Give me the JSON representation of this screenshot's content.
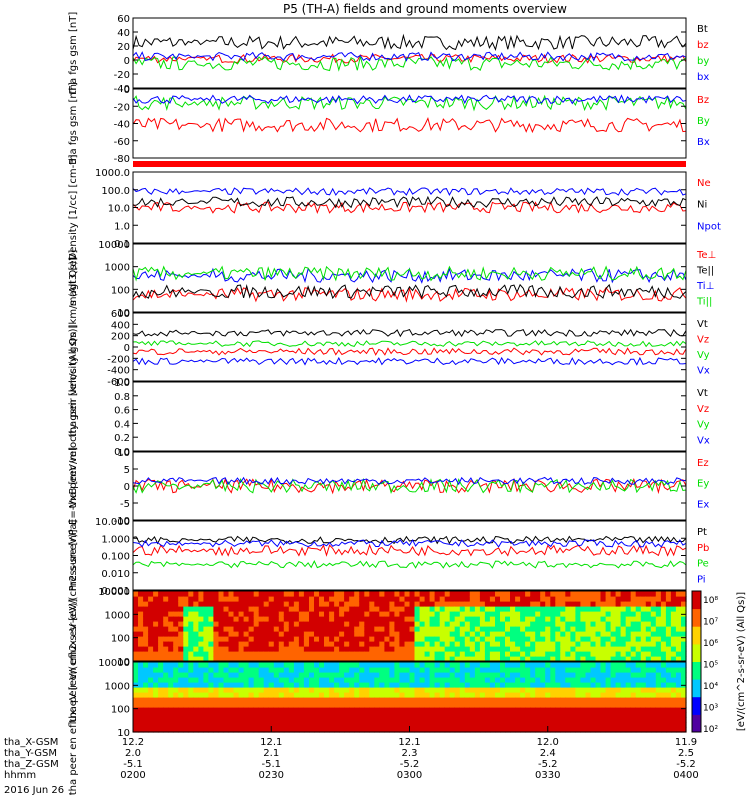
{
  "title": "P5 (TH-A) fields and ground moments overview",
  "date_label": "2016 Jun 26",
  "colors": {
    "black": "#000000",
    "red": "#ff0000",
    "green": "#00e000",
    "blue": "#0000ff",
    "colorbar": [
      "#5000a0",
      "#0000ff",
      "#00c8ff",
      "#00ff80",
      "#c8ff00",
      "#ffd200",
      "#ff6400",
      "#d20000"
    ]
  },
  "chart_data": [
    {
      "type": "line",
      "ylabel": "tha fgs gsm [nT]",
      "ylim": [
        -40,
        60
      ],
      "ticks": [
        "60",
        "40",
        "20",
        "0",
        "-20",
        "-40"
      ],
      "series": [
        {
          "name": "Bt",
          "color": "black",
          "base": 25,
          "amp": 10
        },
        {
          "name": "bz",
          "color": "red",
          "base": 2,
          "amp": 6
        },
        {
          "name": "by",
          "color": "green",
          "base": -5,
          "amp": 10
        },
        {
          "name": "bx",
          "color": "blue",
          "base": 5,
          "amp": 6
        }
      ]
    },
    {
      "type": "line",
      "ylabel": "tha fgs gsm [nT]",
      "ylim": [
        -90,
        10
      ],
      "ticks": [
        "0",
        "-20",
        "-40",
        "-60",
        "-80"
      ],
      "series": [
        {
          "name": "Bz",
          "color": "red",
          "base": -42,
          "amp": 10
        },
        {
          "name": "By",
          "color": "green",
          "base": -10,
          "amp": 10
        },
        {
          "name": "Bx",
          "color": "blue",
          "base": -5,
          "amp": 6
        }
      ]
    },
    {
      "type": "line",
      "ylabel": "Density [1/cc] [cm-3]",
      "log": true,
      "ylim": [
        0.1,
        1000
      ],
      "ticks": [
        "1000.0",
        "100.0",
        "10.0",
        "1.0",
        "0.1"
      ],
      "series": [
        {
          "name": "Ne",
          "color": "red",
          "base": 10,
          "amp": 0.3
        },
        {
          "name": "Ni",
          "color": "black",
          "base": 20,
          "amp": 0.3
        },
        {
          "name": "Npot",
          "color": "blue",
          "base": 80,
          "amp": 0.2
        }
      ]
    },
    {
      "type": "line",
      "ylabel": "magt3 [eV]",
      "log": true,
      "ylim": [
        10,
        10000
      ],
      "ticks": [
        "10000",
        "1000",
        "100",
        "10"
      ],
      "series": [
        {
          "name": "Te⊥",
          "color": "red",
          "base": 60,
          "amp": 0.3
        },
        {
          "name": "Te||",
          "color": "black",
          "base": 80,
          "amp": 0.3
        },
        {
          "name": "Ti⊥",
          "color": "blue",
          "base": 400,
          "amp": 0.3
        },
        {
          "name": "Ti||",
          "color": "green",
          "base": 500,
          "amp": 0.3
        }
      ]
    },
    {
      "type": "line",
      "ylabel": "tha peir velocity gsm [km/s (All Qs)]",
      "ylim": [
        -600,
        600
      ],
      "ticks": [
        "600",
        "400",
        "200",
        "0",
        "-200",
        "-400",
        "-600"
      ],
      "series": [
        {
          "name": "Vt",
          "color": "black",
          "base": 250,
          "amp": 60
        },
        {
          "name": "Vz",
          "color": "red",
          "base": -80,
          "amp": 60
        },
        {
          "name": "Vy",
          "color": "green",
          "base": 60,
          "amp": 50
        },
        {
          "name": "Vx",
          "color": "blue",
          "base": -250,
          "amp": 60
        }
      ]
    },
    {
      "type": "line",
      "ylabel": "tha peer velocity gsm [km/s (All Qs)]",
      "ylim": [
        0,
        1
      ],
      "ticks": [
        "1.0",
        "0.8",
        "0.6",
        "0.4",
        "0.2",
        "0.0"
      ],
      "series": [
        {
          "name": "Vt",
          "color": "black"
        },
        {
          "name": "Vz",
          "color": "red"
        },
        {
          "name": "Vy",
          "color": "green"
        },
        {
          "name": "Vx",
          "color": "blue"
        }
      ]
    },
    {
      "type": "line",
      "ylabel": "E=-VxB [mV/m]",
      "ylim": [
        -10,
        10
      ],
      "ticks": [
        "10",
        "5",
        "0",
        "-5",
        "-10"
      ],
      "series": [
        {
          "name": "Ez",
          "color": "red",
          "base": 0,
          "amp": 2
        },
        {
          "name": "Ey",
          "color": "green",
          "base": 0,
          "amp": 2
        },
        {
          "name": "Ex",
          "color": "blue",
          "base": 1.5,
          "amp": 1
        }
      ]
    },
    {
      "type": "line",
      "ylabel": "Pressure [nPa]",
      "log": true,
      "ylim": [
        0.001,
        10
      ],
      "ticks": [
        "10.000",
        "1.000",
        "0.100",
        "0.010",
        "0.001"
      ],
      "series": [
        {
          "name": "Pt",
          "color": "black",
          "base": 0.8,
          "amp": 0.2
        },
        {
          "name": "Pb",
          "color": "red",
          "base": 0.2,
          "amp": 0.3
        },
        {
          "name": "Pe",
          "color": "green",
          "base": 0.03,
          "amp": 0.2
        },
        {
          "name": "Pi",
          "color": "blue",
          "base": 0.5,
          "amp": 0.2
        }
      ]
    },
    {
      "type": "heatmap",
      "ylabel": "tha peir en eflux eV [eV/(cm2-s-sr-eV)]",
      "log": true,
      "ylim": [
        5,
        30000
      ],
      "ticks": [
        "10000",
        "1000",
        "100",
        "10"
      ]
    },
    {
      "type": "heatmap",
      "ylabel": "tha peer en eflux eV [eV/(cm2-s-sr-eV)]",
      "log": true,
      "ylim": [
        5,
        30000
      ],
      "ticks": [
        "10000",
        "1000",
        "100",
        "10"
      ]
    }
  ],
  "colorbar": {
    "label": "[eV/(cm^2-s-sr-eV) (All Qs)]",
    "ticks": [
      "10⁸",
      "10⁷",
      "10⁶",
      "10⁵",
      "10⁴",
      "10³",
      "10²"
    ]
  },
  "x_axis": {
    "row_labels": [
      "tha_X-GSM",
      "tha_Y-GSM",
      "tha_Z-GSM",
      "hhmm"
    ],
    "ticks": [
      {
        "frac": 0.0,
        "vals": [
          "12.2",
          "2.0",
          "-5.1",
          "0200"
        ]
      },
      {
        "frac": 0.25,
        "vals": [
          "12.1",
          "2.1",
          "-5.1",
          "0230"
        ]
      },
      {
        "frac": 0.5,
        "vals": [
          "12.1",
          "2.3",
          "-5.2",
          "0300"
        ]
      },
      {
        "frac": 0.75,
        "vals": [
          "12.0",
          "2.4",
          "-5.2",
          "0330"
        ]
      },
      {
        "frac": 1.0,
        "vals": [
          "11.9",
          "2.5",
          "-5.2",
          "0400"
        ]
      }
    ]
  }
}
